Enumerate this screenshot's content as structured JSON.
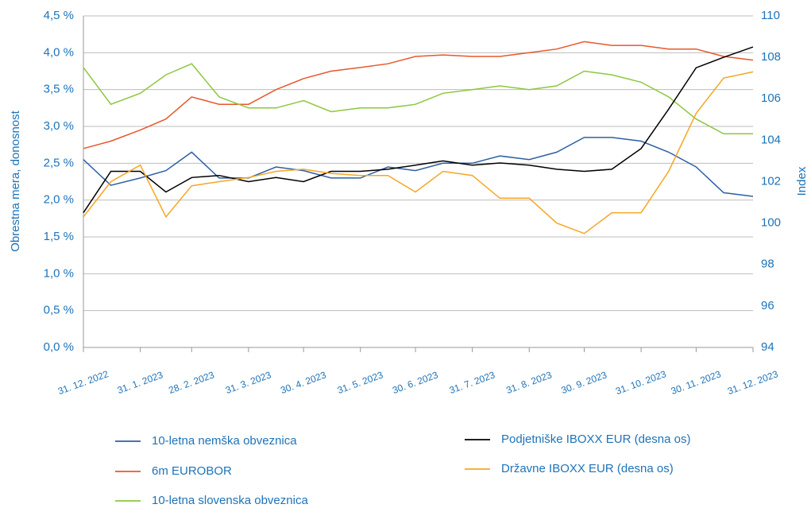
{
  "chart_data": {
    "type": "line",
    "y_label": "Obrestna mera, donosnost",
    "y2_label": "Index",
    "x": [
      "31. 12. 2022",
      "15. 1. 2023",
      "31. 1. 2023",
      "14. 2. 2023",
      "28. 2. 2023",
      "15. 3. 2023",
      "31. 3. 2023",
      "15. 4. 2023",
      "30. 4. 2023",
      "15. 5. 2023",
      "31. 5. 2023",
      "15. 6. 2023",
      "30. 6. 2023",
      "15. 7. 2023",
      "31. 7. 2023",
      "15. 8. 2023",
      "31. 8. 2023",
      "15. 9. 2023",
      "30. 9. 2023",
      "15. 10. 2023",
      "31. 10. 2023",
      "15. 11. 2023",
      "30. 11. 2023",
      "15. 12. 2023",
      "31. 12. 2023"
    ],
    "xticks": [
      "31. 12. 2022",
      "31. 1. 2023",
      "28. 2. 2023",
      "31. 3. 2023",
      "30. 4. 2023",
      "31. 5. 2023",
      "30. 6. 2023",
      "31. 7. 2023",
      "31. 8. 2023",
      "30. 9. 2023",
      "31. 10. 2023",
      "30. 11. 2023",
      "31. 12. 2023"
    ],
    "ylim": [
      0,
      4.5
    ],
    "yticks": [
      {
        "value": 0,
        "label": "0,0 %"
      },
      {
        "value": 0.5,
        "label": "0,5 %"
      },
      {
        "value": 1,
        "label": "1,0 %"
      },
      {
        "value": 1.5,
        "label": "1,5 %"
      },
      {
        "value": 2,
        "label": "2,0 %"
      },
      {
        "value": 2.5,
        "label": "2,5 %"
      },
      {
        "value": 3,
        "label": "3,0 %"
      },
      {
        "value": 3.5,
        "label": "3,5 %"
      },
      {
        "value": 4,
        "label": "4,0 %"
      },
      {
        "value": 4.5,
        "label": "4,5 %"
      }
    ],
    "y2lim": [
      94,
      110
    ],
    "y2ticks": [
      94,
      96,
      98,
      100,
      102,
      104,
      106,
      108,
      110
    ],
    "grid": true,
    "series": [
      {
        "name": "10-letna nemška obveznica",
        "color": "#2e5fa3",
        "values": [
          2.55,
          2.2,
          2.3,
          2.4,
          2.65,
          2.3,
          2.3,
          2.45,
          2.4,
          2.3,
          2.3,
          2.45,
          2.4,
          2.5,
          2.5,
          2.6,
          2.55,
          2.65,
          2.85,
          2.85,
          2.8,
          2.65,
          2.45,
          2.1,
          2.05
        ]
      },
      {
        "name": "6m EUROBOR",
        "color": "#e8572a",
        "values": [
          2.7,
          2.8,
          2.95,
          3.1,
          3.4,
          3.3,
          3.3,
          3.5,
          3.65,
          3.75,
          3.8,
          3.85,
          3.95,
          3.97,
          3.95,
          3.95,
          4.0,
          4.05,
          4.15,
          4.1,
          4.1,
          4.05,
          4.05,
          3.95,
          3.9
        ]
      },
      {
        "name": "10-letna slovenska obveznica",
        "color": "#8dc63f",
        "values": [
          3.8,
          3.3,
          3.45,
          3.7,
          3.85,
          3.4,
          3.25,
          3.25,
          3.35,
          3.2,
          3.25,
          3.25,
          3.3,
          3.45,
          3.5,
          3.55,
          3.5,
          3.55,
          3.75,
          3.7,
          3.6,
          3.4,
          3.1,
          2.9,
          2.9
        ]
      },
      {
        "name": "Podjetniške IBOXX EUR (desna os)",
        "color": "#000000",
        "axis": "y2",
        "values": [
          100.5,
          102.5,
          102.5,
          101.5,
          102.2,
          102.3,
          102.0,
          102.2,
          102.0,
          102.5,
          102.5,
          102.6,
          102.8,
          103.0,
          102.8,
          102.9,
          102.8,
          102.6,
          102.5,
          102.6,
          103.6,
          105.5,
          107.5,
          108.0,
          108.5
        ]
      },
      {
        "name": "Državne IBOXX EUR (desna os)",
        "color": "#f5a623",
        "axis": "y2",
        "values": [
          100.3,
          102.0,
          102.8,
          100.3,
          101.8,
          102.0,
          102.2,
          102.5,
          102.6,
          102.4,
          102.3,
          102.3,
          101.5,
          102.5,
          102.3,
          101.2,
          101.2,
          100.0,
          99.5,
          100.5,
          100.5,
          102.5,
          105.3,
          107.0,
          107.3
        ]
      }
    ]
  }
}
